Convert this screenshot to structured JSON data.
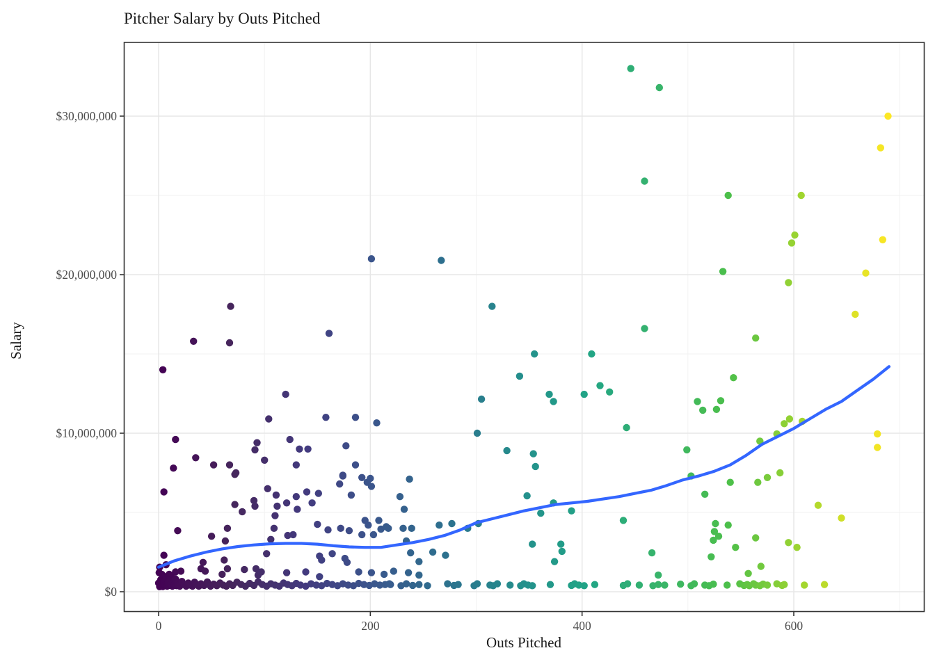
{
  "title": "Pitcher Salary by Outs Pitched",
  "chart_data": {
    "type": "scatter",
    "title": "Pitcher Salary by Outs Pitched",
    "xlabel": "Outs Pitched",
    "ylabel": "Salary",
    "x_ticks": [
      {
        "value": 0,
        "label": "0"
      },
      {
        "value": 200,
        "label": "200"
      },
      {
        "value": 400,
        "label": "400"
      },
      {
        "value": 600,
        "label": "600"
      }
    ],
    "x_minor": [
      100,
      300,
      500,
      700
    ],
    "y_ticks": [
      {
        "value": 0,
        "label": "$0"
      },
      {
        "value": 10,
        "label": "$10,000,000"
      },
      {
        "value": 20,
        "label": "$20,000,000"
      },
      {
        "value": 30,
        "label": "$30,000,000"
      }
    ],
    "y_minor": [
      5,
      15,
      25
    ],
    "xlim": [
      -32.5,
      723
    ],
    "ylim": [
      -1.25,
      34.65
    ],
    "grid": "on",
    "legend": "none",
    "units": "y values in millions of USD; color mapped to Outs Pitched (viridis)",
    "color_scale": {
      "name": "viridis",
      "domain_max_outs": 690,
      "stops": [
        [
          0.0,
          "#440154"
        ],
        [
          0.1,
          "#46265c"
        ],
        [
          0.2,
          "#433a7e"
        ],
        [
          0.29,
          "#3b558c"
        ],
        [
          0.39,
          "#2d708e"
        ],
        [
          0.5,
          "#24908c"
        ],
        [
          0.59,
          "#21a585"
        ],
        [
          0.67,
          "#35b26f"
        ],
        [
          0.78,
          "#4cbf4a"
        ],
        [
          0.88,
          "#a0d52f"
        ],
        [
          0.95,
          "#dce226"
        ],
        [
          1.0,
          "#fde725"
        ]
      ]
    },
    "smooth_line": {
      "color": "#3366FF",
      "width": 4.2,
      "points": [
        [
          0,
          1.55
        ],
        [
          15,
          1.95
        ],
        [
          30,
          2.25
        ],
        [
          45,
          2.5
        ],
        [
          60,
          2.7
        ],
        [
          75,
          2.85
        ],
        [
          90,
          2.95
        ],
        [
          105,
          3.02
        ],
        [
          120,
          3.05
        ],
        [
          135,
          3.05
        ],
        [
          150,
          3.0
        ],
        [
          165,
          2.9
        ],
        [
          180,
          2.83
        ],
        [
          195,
          2.8
        ],
        [
          210,
          2.8
        ],
        [
          225,
          2.95
        ],
        [
          240,
          3.1
        ],
        [
          255,
          3.3
        ],
        [
          270,
          3.55
        ],
        [
          285,
          3.9
        ],
        [
          300,
          4.35
        ],
        [
          315,
          4.6
        ],
        [
          330,
          4.85
        ],
        [
          345,
          5.1
        ],
        [
          360,
          5.3
        ],
        [
          375,
          5.5
        ],
        [
          390,
          5.6
        ],
        [
          405,
          5.7
        ],
        [
          420,
          5.85
        ],
        [
          435,
          6.0
        ],
        [
          450,
          6.2
        ],
        [
          465,
          6.4
        ],
        [
          480,
          6.7
        ],
        [
          495,
          7.05
        ],
        [
          510,
          7.3
        ],
        [
          525,
          7.6
        ],
        [
          540,
          8.0
        ],
        [
          555,
          8.6
        ],
        [
          570,
          9.3
        ],
        [
          585,
          9.8
        ],
        [
          600,
          10.3
        ],
        [
          615,
          10.9
        ],
        [
          630,
          11.5
        ],
        [
          645,
          12.0
        ],
        [
          660,
          12.7
        ],
        [
          675,
          13.4
        ],
        [
          690,
          14.2
        ]
      ]
    },
    "points": [
      [
        4,
        14
      ],
      [
        33,
        15.8
      ],
      [
        67,
        15.7
      ],
      [
        68,
        18
      ],
      [
        161,
        16.3
      ],
      [
        201,
        21
      ],
      [
        267,
        20.9
      ],
      [
        315,
        18
      ],
      [
        446,
        33
      ],
      [
        473,
        31.8
      ],
      [
        459,
        25.9
      ],
      [
        459,
        16.6
      ],
      [
        689,
        30
      ],
      [
        682,
        28
      ],
      [
        538,
        25
      ],
      [
        607,
        25
      ],
      [
        601,
        22.5
      ],
      [
        598,
        22
      ],
      [
        684,
        22.2
      ],
      [
        533,
        20.2
      ],
      [
        668,
        20.1
      ],
      [
        595,
        19.5
      ],
      [
        658,
        17.5
      ],
      [
        564,
        16
      ],
      [
        355,
        15
      ],
      [
        409,
        15
      ],
      [
        341,
        13.6
      ],
      [
        417,
        13
      ],
      [
        426,
        12.6
      ],
      [
        402,
        12.45
      ],
      [
        369,
        12.45
      ],
      [
        373,
        12
      ],
      [
        305,
        12.15
      ],
      [
        442,
        10.35
      ],
      [
        301,
        10
      ],
      [
        329,
        8.9
      ],
      [
        354,
        8.7
      ],
      [
        356,
        7.9
      ],
      [
        543,
        13.5
      ],
      [
        509,
        12
      ],
      [
        531,
        12.05
      ],
      [
        527,
        11.5
      ],
      [
        514,
        11.45
      ],
      [
        596,
        10.9
      ],
      [
        591,
        10.6
      ],
      [
        608,
        10.75
      ],
      [
        584,
        9.95
      ],
      [
        568,
        9.5
      ],
      [
        499,
        8.95
      ],
      [
        679,
        9.95
      ],
      [
        679,
        9.1
      ],
      [
        120,
        12.45
      ],
      [
        104,
        10.9
      ],
      [
        158,
        11
      ],
      [
        186,
        11
      ],
      [
        206,
        10.65
      ],
      [
        16,
        9.6
      ],
      [
        93,
        9.4
      ],
      [
        91,
        8.95
      ],
      [
        124,
        9.6
      ],
      [
        35,
        8.45
      ],
      [
        100,
        8.3
      ],
      [
        130,
        8
      ],
      [
        14,
        7.8
      ],
      [
        52,
        8
      ],
      [
        67,
        8
      ],
      [
        72,
        7.4
      ],
      [
        177,
        9.2
      ],
      [
        186,
        8
      ],
      [
        174,
        7.3
      ],
      [
        171,
        6.8
      ],
      [
        133,
        9
      ],
      [
        141,
        9
      ],
      [
        5,
        6.3
      ],
      [
        73,
        7.5
      ],
      [
        103,
        6.5
      ],
      [
        111,
        6.1
      ],
      [
        121,
        5.6
      ],
      [
        130,
        6
      ],
      [
        140,
        6.3
      ],
      [
        145,
        5.6
      ],
      [
        151,
        6.2
      ],
      [
        72,
        5.5
      ],
      [
        79,
        5.05
      ],
      [
        90,
        5.75
      ],
      [
        91,
        5.4
      ],
      [
        110,
        4.8
      ],
      [
        112,
        5.4
      ],
      [
        131,
        5.2
      ],
      [
        174,
        7.35
      ],
      [
        182,
        6.1
      ],
      [
        192,
        7.2
      ],
      [
        197,
        6.9
      ],
      [
        201,
        6.65
      ],
      [
        200,
        7.15
      ],
      [
        18,
        3.85
      ],
      [
        50,
        3.5
      ],
      [
        65,
        4
      ],
      [
        63,
        3.2
      ],
      [
        109,
        4
      ],
      [
        106,
        3.3
      ],
      [
        122,
        3.55
      ],
      [
        127,
        3.6
      ],
      [
        150,
        4.25
      ],
      [
        160,
        3.9
      ],
      [
        172,
        4
      ],
      [
        180,
        3.85
      ],
      [
        192,
        3.6
      ],
      [
        195,
        4.5
      ],
      [
        198,
        4.2
      ],
      [
        203,
        3.6
      ],
      [
        208,
        4.5
      ],
      [
        210,
        3.95
      ],
      [
        215,
        4.1
      ],
      [
        5,
        2.3
      ],
      [
        7,
        1.7
      ],
      [
        42,
        1.85
      ],
      [
        62,
        2
      ],
      [
        102,
        2.4
      ],
      [
        152,
        2.25
      ],
      [
        154,
        2
      ],
      [
        164,
        2.4
      ],
      [
        176,
        2.1
      ],
      [
        178,
        1.85
      ],
      [
        0.5,
        1.2
      ],
      [
        16,
        1.25
      ],
      [
        21,
        1.3
      ],
      [
        40,
        1.45
      ],
      [
        44,
        1.3
      ],
      [
        60,
        1.1
      ],
      [
        65,
        1.45
      ],
      [
        81,
        1.4
      ],
      [
        92,
        1.45
      ],
      [
        94,
        1.05
      ],
      [
        97,
        1.25
      ],
      [
        121,
        1.2
      ],
      [
        139,
        1.25
      ],
      [
        152,
        0.95
      ],
      [
        189,
        1.25
      ],
      [
        201,
        1.2
      ],
      [
        213,
        1.1
      ],
      [
        1,
        1.55
      ],
      [
        3,
        1.1
      ],
      [
        6,
        0.95
      ],
      [
        10,
        1.1
      ],
      [
        12,
        0.95
      ],
      [
        237,
        7.1
      ],
      [
        228,
        6
      ],
      [
        232,
        5.2
      ],
      [
        217,
        4
      ],
      [
        231,
        4
      ],
      [
        239,
        4
      ],
      [
        265,
        4.2
      ],
      [
        277,
        4.3
      ],
      [
        292,
        4
      ],
      [
        302,
        4.3
      ],
      [
        234,
        3.2
      ],
      [
        238,
        2.45
      ],
      [
        246,
        1.9
      ],
      [
        259,
        2.5
      ],
      [
        271,
        2.3
      ],
      [
        222,
        1.3
      ],
      [
        236,
        1.2
      ],
      [
        246,
        1.05
      ],
      [
        348,
        6.05
      ],
      [
        373,
        5.6
      ],
      [
        361,
        4.95
      ],
      [
        390,
        5.1
      ],
      [
        353,
        3
      ],
      [
        380,
        3
      ],
      [
        381,
        2.55
      ],
      [
        374,
        1.9
      ],
      [
        439,
        4.5
      ],
      [
        466,
        2.45
      ],
      [
        503,
        7.3
      ],
      [
        540,
        6.9
      ],
      [
        566,
        6.9
      ],
      [
        575,
        7.2
      ],
      [
        587,
        7.5
      ],
      [
        516,
        6.15
      ],
      [
        623,
        5.45
      ],
      [
        645,
        4.65
      ],
      [
        526,
        4.3
      ],
      [
        538,
        4.2
      ],
      [
        525,
        3.8
      ],
      [
        524,
        3.25
      ],
      [
        529,
        3.5
      ],
      [
        564,
        3.4
      ],
      [
        545,
        2.8
      ],
      [
        595,
        3.1
      ],
      [
        603,
        2.8
      ],
      [
        522,
        2.2
      ],
      [
        569,
        1.6
      ],
      [
        557,
        1.15
      ],
      [
        472,
        1.05
      ],
      [
        219,
        0.45
      ],
      [
        229,
        0.38
      ],
      [
        234,
        0.5
      ],
      [
        240,
        0.4
      ],
      [
        246,
        0.45
      ],
      [
        254,
        0.38
      ],
      [
        273,
        0.5
      ],
      [
        279,
        0.4
      ],
      [
        283,
        0.45
      ],
      [
        298,
        0.38
      ],
      [
        301,
        0.5
      ],
      [
        313,
        0.42
      ],
      [
        316,
        0.38
      ],
      [
        320,
        0.5
      ],
      [
        332,
        0.42
      ],
      [
        342,
        0.38
      ],
      [
        345,
        0.5
      ],
      [
        349,
        0.42
      ],
      [
        353,
        0.38
      ],
      [
        370,
        0.45
      ],
      [
        390,
        0.4
      ],
      [
        393,
        0.5
      ],
      [
        397,
        0.42
      ],
      [
        402,
        0.38
      ],
      [
        412,
        0.45
      ],
      [
        439,
        0.4
      ],
      [
        443,
        0.5
      ],
      [
        454,
        0.42
      ],
      [
        467,
        0.38
      ],
      [
        472,
        0.45
      ],
      [
        478,
        0.42
      ],
      [
        493,
        0.48
      ],
      [
        503,
        0.38
      ],
      [
        506,
        0.5
      ],
      [
        516,
        0.42
      ],
      [
        520,
        0.38
      ],
      [
        524,
        0.48
      ],
      [
        537,
        0.42
      ],
      [
        549,
        0.5
      ],
      [
        553,
        0.4
      ],
      [
        556,
        0.45
      ],
      [
        558,
        0.38
      ],
      [
        562,
        0.5
      ],
      [
        564,
        0.42
      ],
      [
        568,
        0.38
      ],
      [
        571,
        0.48
      ],
      [
        575,
        0.42
      ],
      [
        584,
        0.5
      ],
      [
        589,
        0.4
      ],
      [
        591,
        0.45
      ],
      [
        610,
        0.42
      ],
      [
        629,
        0.45
      ],
      [
        0,
        0.55
      ],
      [
        1,
        0.32
      ],
      [
        2,
        0.75
      ],
      [
        3,
        0.5
      ],
      [
        4,
        0.33
      ],
      [
        5,
        0.62
      ],
      [
        6,
        0.44
      ],
      [
        7,
        0.85
      ],
      [
        8,
        0.35
      ],
      [
        9,
        0.55
      ],
      [
        10,
        0.4
      ],
      [
        11,
        0.72
      ],
      [
        12,
        0.5
      ],
      [
        13,
        0.35
      ],
      [
        14,
        0.6
      ],
      [
        15,
        0.45
      ],
      [
        16,
        0.8
      ],
      [
        17,
        0.38
      ],
      [
        18,
        0.55
      ],
      [
        19,
        0.42
      ],
      [
        20,
        0.35
      ],
      [
        22,
        0.65
      ],
      [
        24,
        0.45
      ],
      [
        26,
        0.35
      ],
      [
        28,
        0.55
      ],
      [
        30,
        0.42
      ],
      [
        32,
        0.35
      ],
      [
        34,
        0.6
      ],
      [
        36,
        0.45
      ],
      [
        38,
        0.35
      ],
      [
        40,
        0.5
      ],
      [
        43,
        0.4
      ],
      [
        46,
        0.62
      ],
      [
        49,
        0.35
      ],
      [
        52,
        0.48
      ],
      [
        55,
        0.38
      ],
      [
        58,
        0.55
      ],
      [
        61,
        0.42
      ],
      [
        64,
        0.35
      ],
      [
        67,
        0.5
      ],
      [
        70,
        0.4
      ],
      [
        74,
        0.6
      ],
      [
        78,
        0.45
      ],
      [
        82,
        0.35
      ],
      [
        86,
        0.52
      ],
      [
        90,
        0.4
      ],
      [
        94,
        0.62
      ],
      [
        98,
        0.45
      ],
      [
        102,
        0.35
      ],
      [
        106,
        0.5
      ],
      [
        110,
        0.42
      ],
      [
        114,
        0.35
      ],
      [
        118,
        0.55
      ],
      [
        122,
        0.45
      ],
      [
        126,
        0.38
      ],
      [
        130,
        0.52
      ],
      [
        134,
        0.42
      ],
      [
        139,
        0.35
      ],
      [
        144,
        0.5
      ],
      [
        149,
        0.42
      ],
      [
        154,
        0.38
      ],
      [
        159,
        0.52
      ],
      [
        164,
        0.45
      ],
      [
        169,
        0.38
      ],
      [
        174,
        0.5
      ],
      [
        179,
        0.42
      ],
      [
        184,
        0.38
      ],
      [
        189,
        0.52
      ],
      [
        194,
        0.45
      ],
      [
        199,
        0.4
      ],
      [
        204,
        0.5
      ],
      [
        209,
        0.42
      ],
      [
        214,
        0.45
      ],
      [
        218,
        0.5
      ]
    ]
  },
  "style": {
    "panel_border": "#333333",
    "grid_major": "#e7e7e7",
    "grid_minor": "#f1f1f1",
    "tick_color": "#333333",
    "tick_label_color": "#4d4d4d",
    "text_color": "#1a1a1a",
    "point_radius": 5.2
  }
}
